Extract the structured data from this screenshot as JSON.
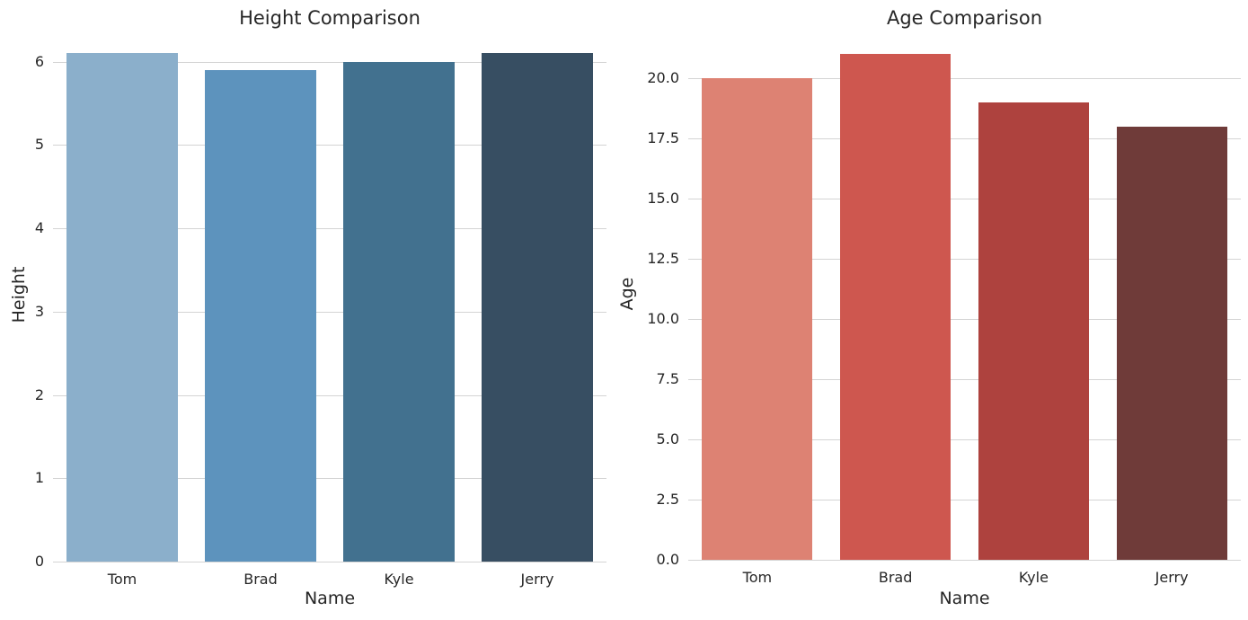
{
  "figure": {
    "background": "#ffffff"
  },
  "style": {
    "text_color": "#262626",
    "grid_color": "#d4d4d4"
  },
  "chart_data": [
    {
      "type": "bar",
      "title": "Height Comparison",
      "xlabel": "Name",
      "ylabel": "Height",
      "categories": [
        "Tom",
        "Brad",
        "Kyle",
        "Jerry"
      ],
      "values": [
        6.1,
        5.9,
        6.0,
        6.1
      ],
      "ylim": [
        0,
        6.405
      ],
      "yticks": [
        0,
        1,
        2,
        3,
        4,
        5,
        6
      ],
      "ytick_labels": [
        "0",
        "1",
        "2",
        "3",
        "4",
        "5",
        "6"
      ],
      "bar_colors": [
        "#8bafcb",
        "#5d93bd",
        "#42718f",
        "#374e62"
      ],
      "bar_rel_width": 0.8,
      "grid": true,
      "legend": "none"
    },
    {
      "type": "bar",
      "title": "Age Comparison",
      "xlabel": "Name",
      "ylabel": "Age",
      "categories": [
        "Tom",
        "Brad",
        "Kyle",
        "Jerry"
      ],
      "values": [
        20,
        21,
        19,
        18
      ],
      "ylim": [
        0,
        22.05
      ],
      "yticks": [
        0,
        2.5,
        5,
        7.5,
        10,
        12.5,
        15,
        17.5,
        20
      ],
      "ytick_labels": [
        "0.0",
        "2.5",
        "5.0",
        "7.5",
        "10.0",
        "12.5",
        "15.0",
        "17.5",
        "20.0"
      ],
      "bar_colors": [
        "#dd8273",
        "#ce574f",
        "#ae423e",
        "#6f3b39"
      ],
      "bar_rel_width": 0.8,
      "grid": true,
      "legend": "none"
    }
  ]
}
